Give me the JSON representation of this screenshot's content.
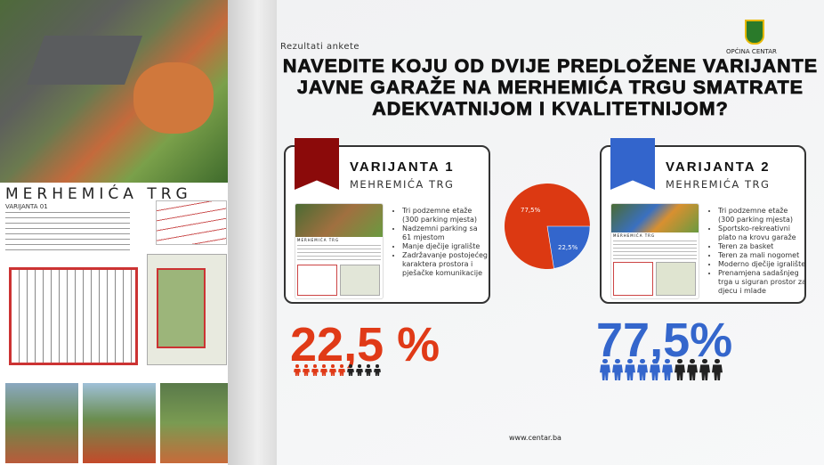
{
  "poster": {
    "title": "MERHEMIĆA TRG",
    "subtitle": "VARIJANTA 01"
  },
  "slide": {
    "kicker": "Rezultati ankete",
    "logo_text": "OPĆINA CENTAR",
    "question": "NAVEDITE KOJU OD DVIJE PREDLOŽENE VARIJANTE JAVNE GARAŽE NA MERHEMIĆA TRGU SMATRATE ADEKVATNIJOM I KVALITETNIJOM?",
    "footer": "www.centar.ba"
  },
  "variants": [
    {
      "title": "VARIJANTA 1",
      "subtitle": "MEHREMIĆA TRG",
      "color": "#8b0a0a",
      "result": "22,5 %",
      "result_color": "#e03a17",
      "bullets": [
        "Tri podzemne etaže (300 parking mjesta)",
        "Nadzemni parking sa 61 mjestom",
        "Manje dječije igralište",
        "Zadržavanje postojećeg karaktera prostora i pješačke komunikacije"
      ],
      "people_highlighted": 6,
      "people_total": 10,
      "thumb_title": "MERHEMIĆA TRG"
    },
    {
      "title": "VARIJANTA 2",
      "subtitle": "MEHREMIĆA TRG",
      "color": "#3365cc",
      "result": "77,5%",
      "result_color": "#3466cc",
      "bullets": [
        "Tri podzemne etaže (300 parking mjesta)",
        "Sportsko-rekreativni plato na krovu garaže",
        "Teren za basket",
        "Teren za mali nogomet",
        "Moderno dječije igralište",
        "Prenamjena sadašnjeg trga u siguran prostor za djecu i mlade"
      ],
      "people_highlighted": 6,
      "people_total": 10,
      "thumb_title": "MERHEMIĆA TRG"
    }
  ],
  "chart_data": {
    "type": "pie",
    "slices": [
      {
        "label": "77,5%",
        "value": 77.5,
        "color": "#dc3912"
      },
      {
        "label": "22,5%",
        "value": 22.5,
        "color": "#3366cc"
      }
    ]
  }
}
